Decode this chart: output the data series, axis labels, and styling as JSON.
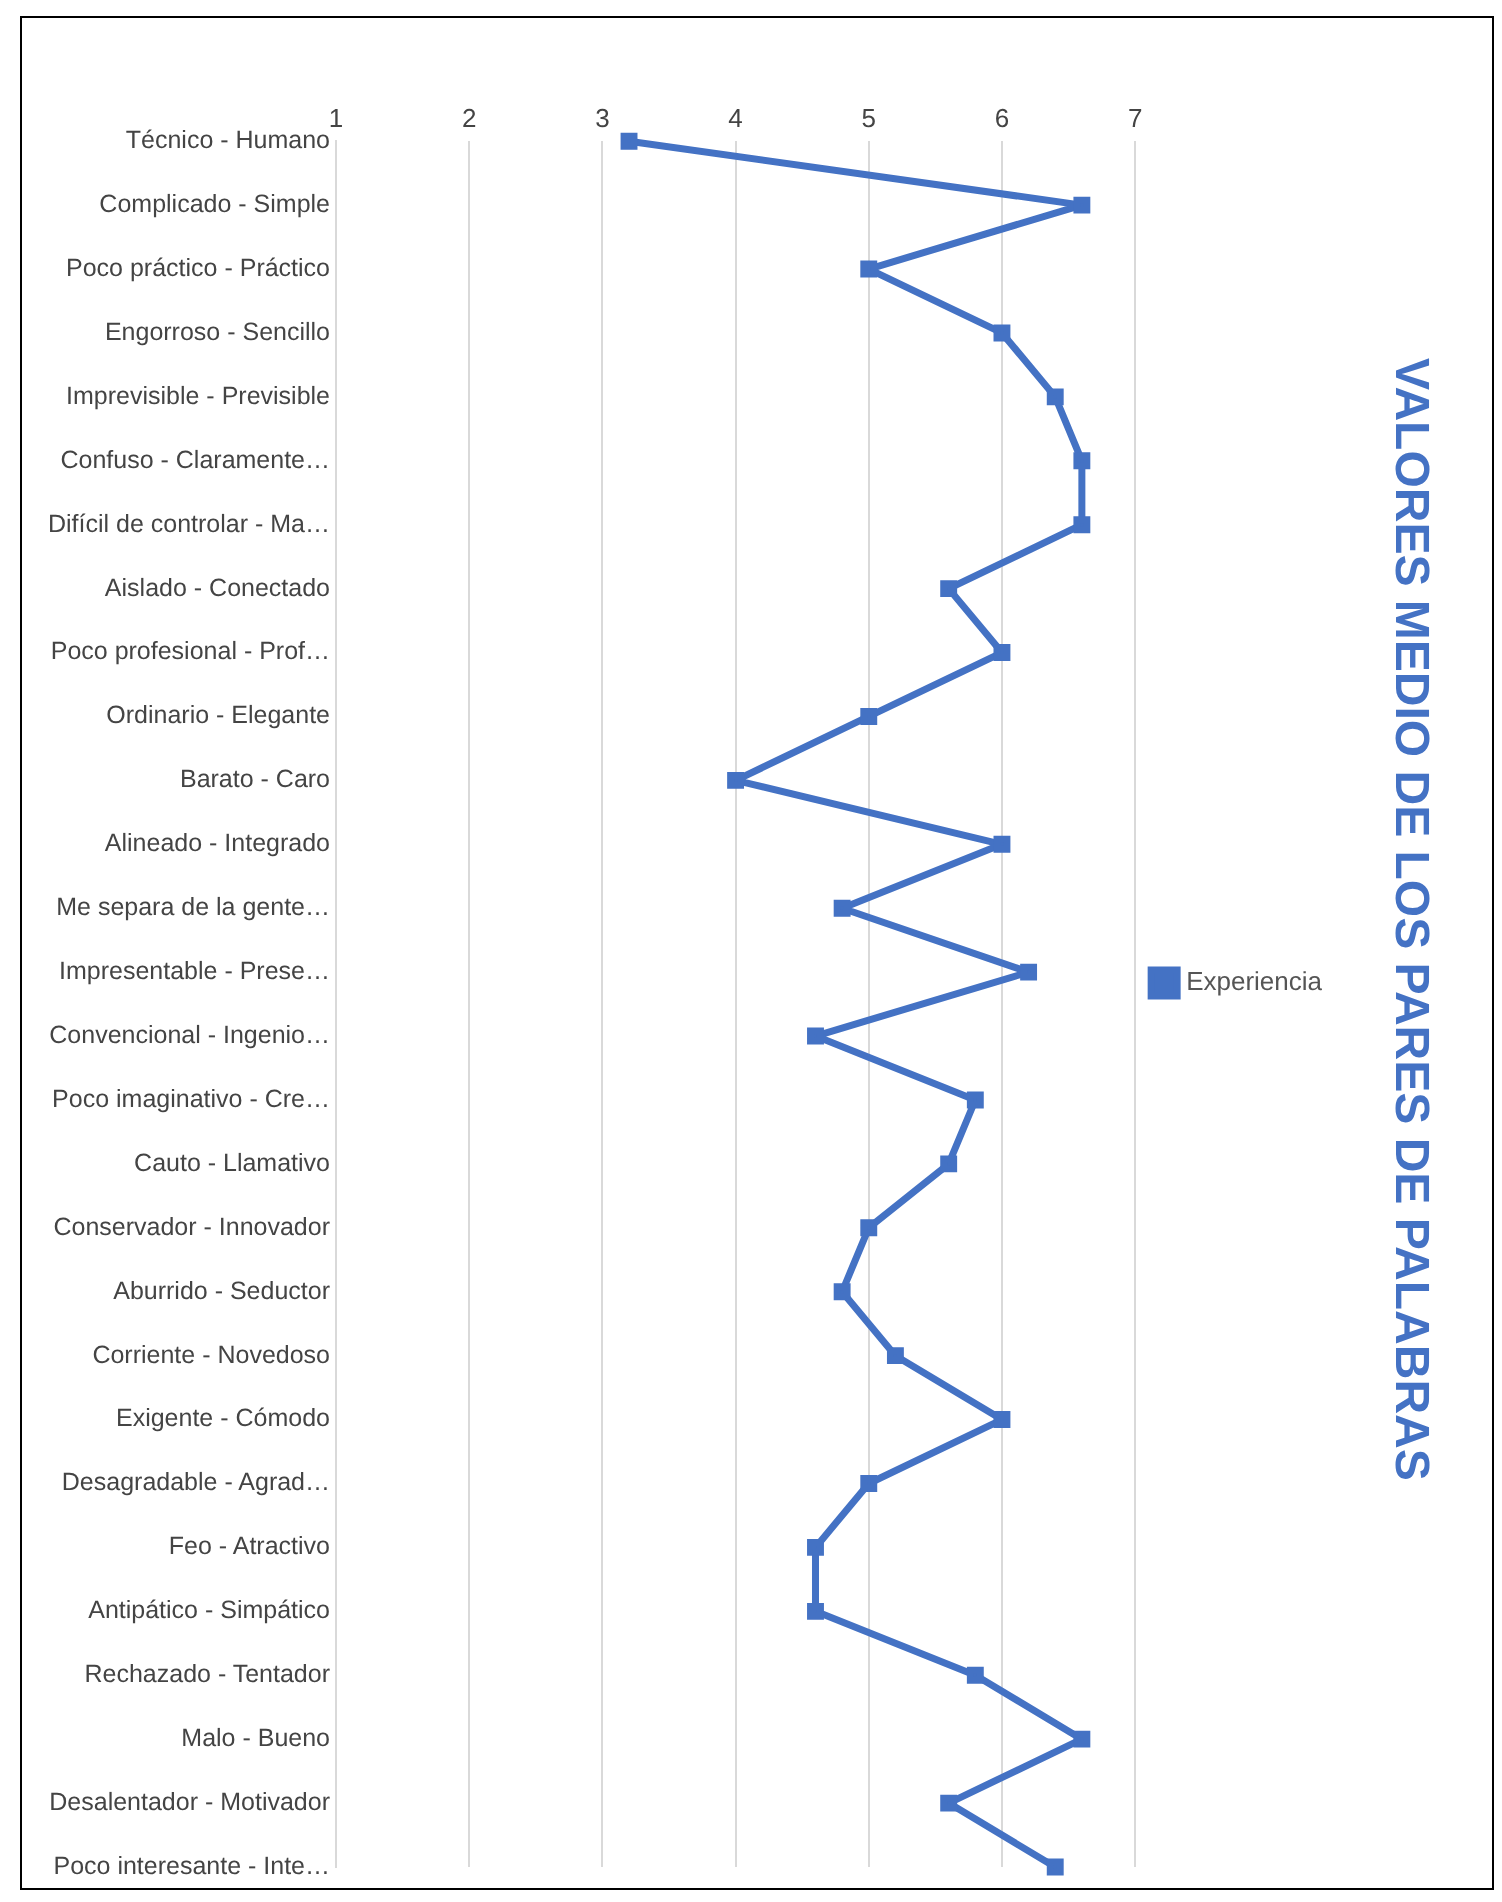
{
  "chart_data": {
    "type": "line",
    "title": "VALORES MEDIO DE LOS PARES DE PALABRAS",
    "orientation": "horizontal",
    "categories": [
      "Técnico - Humano",
      "Complicado - Simple",
      "Poco práctico - Práctico",
      "Engorroso - Sencillo",
      "Imprevisible - Previsible",
      "Confuso - Claramente…",
      "Difícil de controlar - Ma…",
      "Aislado - Conectado",
      "Poco profesional - Prof…",
      "Ordinario - Elegante",
      "Barato - Caro",
      "Alineado - Integrado",
      "Me separa de la gente…",
      "Impresentable - Prese…",
      "Convencional - Ingenio…",
      "Poco imaginativo - Cre…",
      "Cauto - Llamativo",
      "Conservador - Innovador",
      "Aburrido - Seductor",
      "Corriente - Novedoso",
      "Exigente - Cómodo",
      "Desagradable - Agrad…",
      "Feo - Atractivo",
      "Antipático - Simpático",
      "Rechazado - Tentador",
      "Malo - Bueno",
      "Desalentador - Motivador",
      "Poco interesante - Inte…"
    ],
    "series": [
      {
        "name": "Experiencia",
        "color": "#4472c4",
        "values": [
          3.2,
          6.6,
          5.0,
          6.0,
          6.4,
          6.6,
          6.6,
          5.6,
          6.0,
          5.0,
          4.0,
          6.0,
          4.8,
          6.2,
          4.6,
          5.8,
          5.6,
          5.0,
          4.8,
          5.2,
          6.0,
          5.0,
          4.6,
          4.6,
          5.8,
          6.6,
          5.6,
          6.4
        ]
      }
    ],
    "xlim": [
      1,
      7
    ],
    "xticks": [
      1,
      2,
      3,
      4,
      5,
      6,
      7
    ],
    "grid": "x",
    "legend": "right",
    "marker": "square"
  }
}
